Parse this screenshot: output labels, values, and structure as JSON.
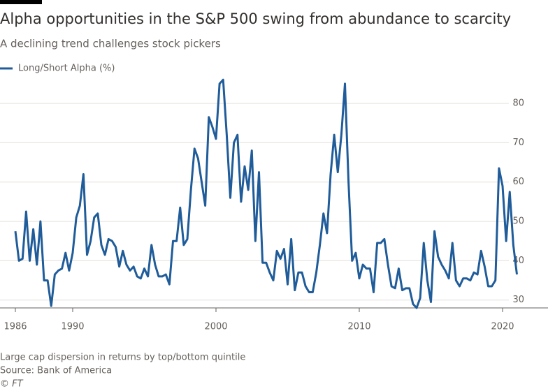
{
  "chart_data": {
    "type": "line",
    "title": "Alpha opportunities in the S&P 500 swing from abundance to scarcity",
    "subtitle": "A declining trend challenges stock pickers",
    "note": "Large cap dispersion in returns by top/bottom quintile",
    "source": "Source: Bank of America",
    "credit": "© FT",
    "x": [
      1986.0,
      1986.25,
      1986.5,
      1986.75,
      1987.0,
      1987.25,
      1987.5,
      1987.75,
      1988.0,
      1988.25,
      1988.5,
      1988.75,
      1989.0,
      1989.25,
      1989.5,
      1989.75,
      1990.0,
      1990.25,
      1990.5,
      1990.75,
      1991.0,
      1991.25,
      1991.5,
      1991.75,
      1992.0,
      1992.25,
      1992.5,
      1992.75,
      1993.0,
      1993.25,
      1993.5,
      1993.75,
      1994.0,
      1994.25,
      1994.5,
      1994.75,
      1995.0,
      1995.25,
      1995.5,
      1995.75,
      1996.0,
      1996.25,
      1996.5,
      1996.75,
      1997.0,
      1997.25,
      1997.5,
      1997.75,
      1998.0,
      1998.25,
      1998.5,
      1998.75,
      1999.0,
      1999.25,
      1999.5,
      1999.75,
      2000.0,
      2000.25,
      2000.5,
      2000.75,
      2001.0,
      2001.25,
      2001.5,
      2001.75,
      2002.0,
      2002.25,
      2002.5,
      2002.75,
      2003.0,
      2003.25,
      2003.5,
      2003.75,
      2004.0,
      2004.25,
      2004.5,
      2004.75,
      2005.0,
      2005.25,
      2005.5,
      2005.75,
      2006.0,
      2006.25,
      2006.5,
      2006.75,
      2007.0,
      2007.25,
      2007.5,
      2007.75,
      2008.0,
      2008.25,
      2008.5,
      2008.75,
      2009.0,
      2009.25,
      2009.5,
      2009.75,
      2010.0,
      2010.25,
      2010.5,
      2010.75,
      2011.0,
      2011.25,
      2011.5,
      2011.75,
      2012.0,
      2012.25,
      2012.5,
      2012.75,
      2013.0,
      2013.25,
      2013.5,
      2013.75,
      2014.0,
      2014.25,
      2014.5,
      2014.75,
      2015.0,
      2015.25,
      2015.5,
      2015.75,
      2016.0,
      2016.25,
      2016.5,
      2016.75,
      2017.0,
      2017.25,
      2017.5,
      2017.75,
      2018.0,
      2018.25,
      2018.5,
      2018.75,
      2019.0,
      2019.25,
      2019.5,
      2019.75,
      2020.0,
      2020.25,
      2020.5,
      2020.75,
      2021.0
    ],
    "series": [
      {
        "name": "Long/Short Alpha (%)",
        "color": "#1f5c99",
        "values": [
          47.5,
          40,
          40.5,
          52.5,
          40,
          48,
          39,
          50,
          35,
          35,
          28.5,
          36.5,
          37.5,
          38,
          42,
          37.5,
          42,
          51,
          54,
          62,
          41.5,
          45,
          51,
          52,
          44,
          41.5,
          45.5,
          45,
          43.5,
          38.5,
          42.5,
          39,
          37.5,
          38.5,
          36,
          35.5,
          38,
          36,
          44,
          39,
          36,
          36,
          36.5,
          34,
          45,
          45,
          53.5,
          44,
          45.5,
          58,
          68.5,
          66,
          60,
          54,
          76.5,
          74,
          71,
          85,
          86,
          72,
          56,
          70,
          72,
          55,
          64,
          58,
          68,
          45,
          62.5,
          39.5,
          39.5,
          37,
          35,
          42.5,
          40.5,
          43,
          34,
          45.5,
          32.5,
          37,
          37,
          33.5,
          32,
          32,
          37,
          44,
          52,
          47,
          62,
          72,
          62.5,
          72,
          85,
          60,
          40,
          42,
          35.5,
          39,
          38,
          38,
          32,
          44.5,
          44.5,
          45.5,
          39,
          33.5,
          33,
          38,
          32.5,
          33,
          33,
          29,
          28,
          30.5,
          44.5,
          35,
          29.5,
          47.5,
          41,
          39,
          37.5,
          35.5,
          44.5,
          35,
          33.5,
          35.5,
          35.5,
          35,
          37,
          36.5,
          42.5,
          38.5,
          33.5,
          33.5,
          35,
          63.5,
          59,
          45,
          57.5,
          44,
          36.5
        ]
      }
    ],
    "xlim": [
      1986,
      2022
    ],
    "ylim": [
      28,
      88
    ],
    "xticks": [
      1986,
      1990,
      2000,
      2010,
      2020
    ],
    "yticks": [
      30,
      40,
      50,
      60,
      70,
      80
    ],
    "grid": true
  }
}
